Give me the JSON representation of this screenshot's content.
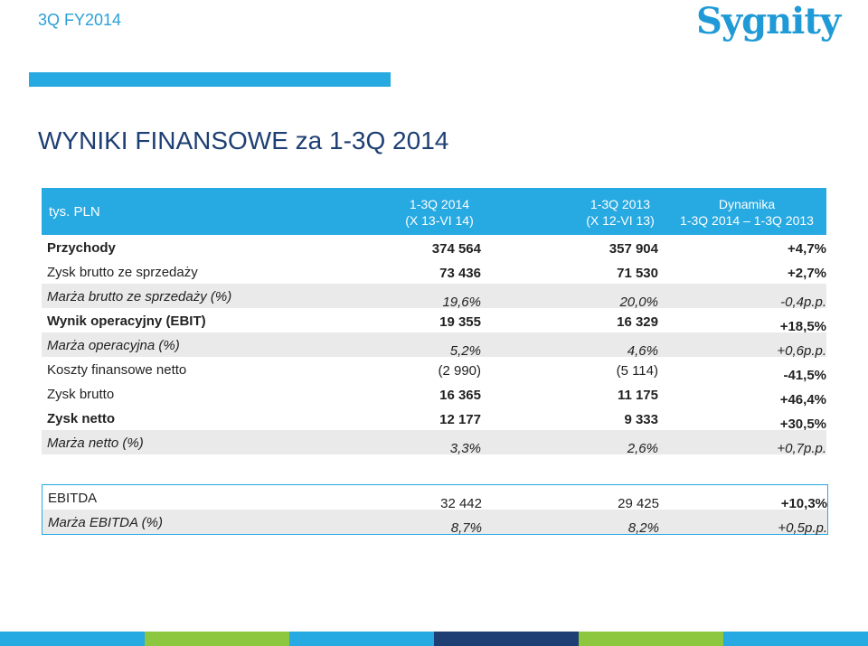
{
  "header": {
    "period_label": "3Q FY2014",
    "logo_text": "Sygnity"
  },
  "title": "WYNIKI FINANSOWE za 1-3Q 2014",
  "table": {
    "unit": "tys. PLN",
    "columns": [
      {
        "line1": "1-3Q 2014",
        "line2": "(X 13-VI 14)"
      },
      {
        "line1": "1-3Q 2013",
        "line2": "(X 12-VI 13)"
      },
      {
        "line1": "Dynamika",
        "line2": "1-3Q 2014 – 1-3Q 2013"
      }
    ],
    "rows": [
      {
        "label": "Przychody",
        "v1": "374 564",
        "v2": "357 904",
        "v3": "+4,7%"
      },
      {
        "label": "Zysk brutto ze sprzedaży",
        "v1": "73 436",
        "v2": "71 530",
        "v3": "+2,7%"
      },
      {
        "label": "Marża brutto ze sprzedaży (%)",
        "v1": "19,6%",
        "v2": "20,0%",
        "v3": "-0,4p.p."
      },
      {
        "label": "Wynik operacyjny (EBIT)",
        "v1": "19 355",
        "v2": "16 329",
        "v3": "+18,5%"
      },
      {
        "label": "Marża operacyjna (%)",
        "v1": "5,2%",
        "v2": "4,6%",
        "v3": "+0,6p.p."
      },
      {
        "label": "Koszty finansowe netto",
        "v1": "(2 990)",
        "v2": "(5 114)",
        "v3": "-41,5%"
      },
      {
        "label": "Zysk brutto",
        "v1": "16 365",
        "v2": "11 175",
        "v3": "+46,4%"
      },
      {
        "label": "Zysk netto",
        "v1": "12 177",
        "v2": "9 333",
        "v3": "+30,5%"
      },
      {
        "label": "Marża netto (%)",
        "v1": "3,3%",
        "v2": "2,6%",
        "v3": "+0,7p.p."
      }
    ]
  },
  "ebitda": {
    "rows": [
      {
        "label": "EBITDA",
        "v1": "32 442",
        "v2": "29 425",
        "v3": "+10,3%"
      },
      {
        "label": "Marża EBITDA (%)",
        "v1": "8,7%",
        "v2": "8,2%",
        "v3": "+0,5p.p."
      }
    ]
  },
  "colors": {
    "accent": "#27a9e1",
    "title": "#1e3f73",
    "bottom_bar": [
      "#27a9e1",
      "#8dc63f",
      "#27a9e1",
      "#1e3f73",
      "#8dc63f",
      "#27a9e1"
    ]
  }
}
